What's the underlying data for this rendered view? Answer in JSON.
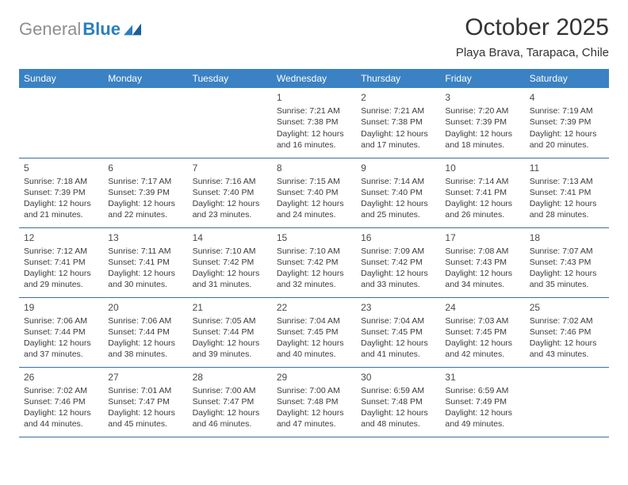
{
  "logo": {
    "gray": "General",
    "blue": "Blue"
  },
  "title": "October 2025",
  "subtitle": "Playa Brava, Tarapaca, Chile",
  "colors": {
    "header_bg": "#3b82c4",
    "header_text": "#ffffff",
    "row_border": "#3b6fa0",
    "body_text": "#3b3b3b",
    "logo_gray": "#8f8f8f",
    "logo_blue": "#2a7fbf"
  },
  "typography": {
    "title_fontsize": 30,
    "subtitle_fontsize": 15,
    "dayhead_fontsize": 12,
    "daynum_fontsize": 12,
    "body_fontsize": 10.5
  },
  "day_headers": [
    "Sunday",
    "Monday",
    "Tuesday",
    "Wednesday",
    "Thursday",
    "Friday",
    "Saturday"
  ],
  "weeks": [
    [
      null,
      null,
      null,
      {
        "n": "1",
        "sr": "7:21 AM",
        "ss": "7:38 PM",
        "dl": "12 hours and 16 minutes."
      },
      {
        "n": "2",
        "sr": "7:21 AM",
        "ss": "7:38 PM",
        "dl": "12 hours and 17 minutes."
      },
      {
        "n": "3",
        "sr": "7:20 AM",
        "ss": "7:39 PM",
        "dl": "12 hours and 18 minutes."
      },
      {
        "n": "4",
        "sr": "7:19 AM",
        "ss": "7:39 PM",
        "dl": "12 hours and 20 minutes."
      }
    ],
    [
      {
        "n": "5",
        "sr": "7:18 AM",
        "ss": "7:39 PM",
        "dl": "12 hours and 21 minutes."
      },
      {
        "n": "6",
        "sr": "7:17 AM",
        "ss": "7:39 PM",
        "dl": "12 hours and 22 minutes."
      },
      {
        "n": "7",
        "sr": "7:16 AM",
        "ss": "7:40 PM",
        "dl": "12 hours and 23 minutes."
      },
      {
        "n": "8",
        "sr": "7:15 AM",
        "ss": "7:40 PM",
        "dl": "12 hours and 24 minutes."
      },
      {
        "n": "9",
        "sr": "7:14 AM",
        "ss": "7:40 PM",
        "dl": "12 hours and 25 minutes."
      },
      {
        "n": "10",
        "sr": "7:14 AM",
        "ss": "7:41 PM",
        "dl": "12 hours and 26 minutes."
      },
      {
        "n": "11",
        "sr": "7:13 AM",
        "ss": "7:41 PM",
        "dl": "12 hours and 28 minutes."
      }
    ],
    [
      {
        "n": "12",
        "sr": "7:12 AM",
        "ss": "7:41 PM",
        "dl": "12 hours and 29 minutes."
      },
      {
        "n": "13",
        "sr": "7:11 AM",
        "ss": "7:41 PM",
        "dl": "12 hours and 30 minutes."
      },
      {
        "n": "14",
        "sr": "7:10 AM",
        "ss": "7:42 PM",
        "dl": "12 hours and 31 minutes."
      },
      {
        "n": "15",
        "sr": "7:10 AM",
        "ss": "7:42 PM",
        "dl": "12 hours and 32 minutes."
      },
      {
        "n": "16",
        "sr": "7:09 AM",
        "ss": "7:42 PM",
        "dl": "12 hours and 33 minutes."
      },
      {
        "n": "17",
        "sr": "7:08 AM",
        "ss": "7:43 PM",
        "dl": "12 hours and 34 minutes."
      },
      {
        "n": "18",
        "sr": "7:07 AM",
        "ss": "7:43 PM",
        "dl": "12 hours and 35 minutes."
      }
    ],
    [
      {
        "n": "19",
        "sr": "7:06 AM",
        "ss": "7:44 PM",
        "dl": "12 hours and 37 minutes."
      },
      {
        "n": "20",
        "sr": "7:06 AM",
        "ss": "7:44 PM",
        "dl": "12 hours and 38 minutes."
      },
      {
        "n": "21",
        "sr": "7:05 AM",
        "ss": "7:44 PM",
        "dl": "12 hours and 39 minutes."
      },
      {
        "n": "22",
        "sr": "7:04 AM",
        "ss": "7:45 PM",
        "dl": "12 hours and 40 minutes."
      },
      {
        "n": "23",
        "sr": "7:04 AM",
        "ss": "7:45 PM",
        "dl": "12 hours and 41 minutes."
      },
      {
        "n": "24",
        "sr": "7:03 AM",
        "ss": "7:45 PM",
        "dl": "12 hours and 42 minutes."
      },
      {
        "n": "25",
        "sr": "7:02 AM",
        "ss": "7:46 PM",
        "dl": "12 hours and 43 minutes."
      }
    ],
    [
      {
        "n": "26",
        "sr": "7:02 AM",
        "ss": "7:46 PM",
        "dl": "12 hours and 44 minutes."
      },
      {
        "n": "27",
        "sr": "7:01 AM",
        "ss": "7:47 PM",
        "dl": "12 hours and 45 minutes."
      },
      {
        "n": "28",
        "sr": "7:00 AM",
        "ss": "7:47 PM",
        "dl": "12 hours and 46 minutes."
      },
      {
        "n": "29",
        "sr": "7:00 AM",
        "ss": "7:48 PM",
        "dl": "12 hours and 47 minutes."
      },
      {
        "n": "30",
        "sr": "6:59 AM",
        "ss": "7:48 PM",
        "dl": "12 hours and 48 minutes."
      },
      {
        "n": "31",
        "sr": "6:59 AM",
        "ss": "7:49 PM",
        "dl": "12 hours and 49 minutes."
      },
      null
    ]
  ],
  "labels": {
    "sunrise": "Sunrise: ",
    "sunset": "Sunset: ",
    "daylight": "Daylight: "
  }
}
